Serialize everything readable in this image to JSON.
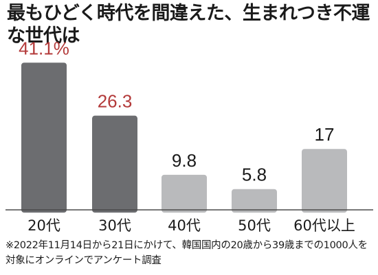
{
  "chart_data": {
    "type": "bar",
    "title": "最もひどく時代を間違えた、生まれつき不運な世代は",
    "categories": [
      "20代",
      "30代",
      "40代",
      "50代",
      "60代以上"
    ],
    "values": [
      41.1,
      26.3,
      9.8,
      5.8,
      17
    ],
    "value_labels": [
      "41.1%",
      "26.3",
      "9.8",
      "5.8",
      "17"
    ],
    "highlight_count": 2,
    "ylim": [
      0,
      45
    ],
    "grid": false,
    "legend": "none",
    "note": "※2022年11月14日から21日にかけて、韓国国内の20歳から39歳までの1000人を対象にオンラインでアンケート調査",
    "colors": {
      "highlight_bar": "#6c6d70",
      "normal_bar": "#b9babc",
      "highlight_label": "#b33a3a",
      "normal_label": "#1a1a1a",
      "baseline": "#4a4a4a",
      "text": "#1a1a1a"
    }
  }
}
